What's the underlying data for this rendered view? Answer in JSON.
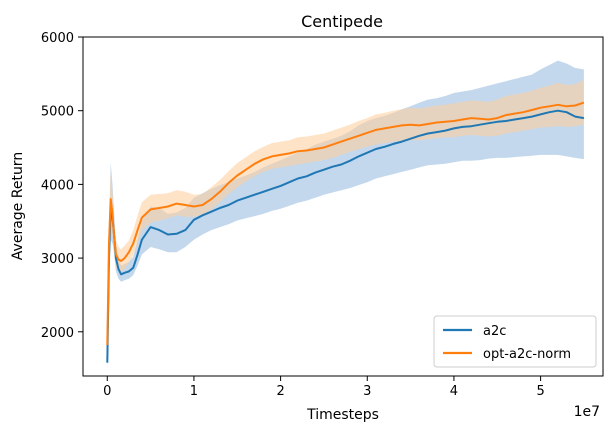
{
  "chart_data": {
    "type": "line",
    "title": "Centipede",
    "xlabel": "Timesteps",
    "ylabel": "Average Return",
    "x_offset_label": "1e7",
    "xlim": [
      -0.28,
      5.72
    ],
    "ylim": [
      1400,
      6000
    ],
    "x_ticks": [
      0,
      1,
      2,
      3,
      4,
      5
    ],
    "x_tick_labels": [
      "0",
      "1",
      "2",
      "3",
      "4",
      "5"
    ],
    "y_ticks": [
      2000,
      3000,
      4000,
      5000,
      6000
    ],
    "y_tick_labels": [
      "2000",
      "3000",
      "4000",
      "5000",
      "6000"
    ],
    "grid": false,
    "legend_position": "lower-right",
    "series": [
      {
        "name": "a2c",
        "color": "#1f77b4",
        "band_color": "#a9c8e4",
        "x": [
          0,
          0.02,
          0.04,
          0.06,
          0.08,
          0.1,
          0.13,
          0.16,
          0.2,
          0.25,
          0.3,
          0.35,
          0.4,
          0.5,
          0.6,
          0.7,
          0.8,
          0.9,
          1.0,
          1.1,
          1.2,
          1.3,
          1.4,
          1.5,
          1.6,
          1.7,
          1.8,
          1.9,
          2.0,
          2.1,
          2.2,
          2.3,
          2.4,
          2.5,
          2.6,
          2.7,
          2.8,
          2.9,
          3.0,
          3.1,
          3.2,
          3.3,
          3.4,
          3.5,
          3.6,
          3.7,
          3.8,
          3.9,
          4.0,
          4.1,
          4.2,
          4.3,
          4.4,
          4.5,
          4.6,
          4.7,
          4.8,
          4.9,
          5.0,
          5.1,
          5.2,
          5.3,
          5.4,
          5.5
        ],
        "y": [
          1580,
          3000,
          3650,
          3550,
          3300,
          3000,
          2850,
          2780,
          2800,
          2820,
          2870,
          3050,
          3250,
          3420,
          3380,
          3320,
          3330,
          3380,
          3520,
          3580,
          3630,
          3680,
          3720,
          3780,
          3820,
          3860,
          3900,
          3940,
          3980,
          4030,
          4080,
          4110,
          4160,
          4200,
          4240,
          4270,
          4320,
          4380,
          4430,
          4480,
          4510,
          4550,
          4580,
          4620,
          4660,
          4690,
          4710,
          4730,
          4760,
          4780,
          4790,
          4810,
          4830,
          4850,
          4860,
          4880,
          4900,
          4920,
          4950,
          4980,
          5000,
          4980,
          4920,
          4900
        ],
        "y_lower": [
          1450,
          2700,
          3250,
          3200,
          3050,
          2820,
          2720,
          2680,
          2700,
          2720,
          2770,
          2900,
          3050,
          3150,
          3120,
          3080,
          3080,
          3150,
          3250,
          3320,
          3380,
          3420,
          3460,
          3510,
          3540,
          3570,
          3600,
          3640,
          3670,
          3710,
          3750,
          3780,
          3820,
          3860,
          3890,
          3920,
          3950,
          3990,
          4030,
          4080,
          4110,
          4140,
          4170,
          4200,
          4230,
          4260,
          4270,
          4280,
          4300,
          4320,
          4320,
          4330,
          4350,
          4360,
          4360,
          4370,
          4380,
          4390,
          4400,
          4400,
          4400,
          4380,
          4360,
          4340
        ],
        "y_upper": [
          1700,
          3400,
          4300,
          4000,
          3600,
          3200,
          3000,
          2900,
          2920,
          2950,
          3020,
          3250,
          3500,
          3700,
          3680,
          3600,
          3620,
          3680,
          3820,
          3880,
          3940,
          3990,
          4030,
          4080,
          4120,
          4170,
          4230,
          4280,
          4330,
          4380,
          4430,
          4480,
          4540,
          4580,
          4620,
          4660,
          4720,
          4800,
          4860,
          4900,
          4930,
          4970,
          5020,
          5060,
          5110,
          5150,
          5170,
          5200,
          5240,
          5260,
          5280,
          5310,
          5340,
          5370,
          5400,
          5430,
          5460,
          5490,
          5560,
          5620,
          5680,
          5640,
          5580,
          5560
        ]
      },
      {
        "name": "opt-a2c-norm",
        "color": "#ff7f0e",
        "band_color": "#fdd0a2",
        "x": [
          0,
          0.02,
          0.04,
          0.06,
          0.08,
          0.1,
          0.13,
          0.16,
          0.2,
          0.25,
          0.3,
          0.35,
          0.4,
          0.5,
          0.6,
          0.7,
          0.8,
          0.9,
          1.0,
          1.1,
          1.2,
          1.3,
          1.4,
          1.5,
          1.6,
          1.7,
          1.8,
          1.9,
          2.0,
          2.1,
          2.2,
          2.3,
          2.4,
          2.5,
          2.6,
          2.7,
          2.8,
          2.9,
          3.0,
          3.1,
          3.2,
          3.3,
          3.4,
          3.5,
          3.6,
          3.7,
          3.8,
          3.9,
          4.0,
          4.1,
          4.2,
          4.3,
          4.4,
          4.5,
          4.6,
          4.7,
          4.8,
          4.9,
          5.0,
          5.1,
          5.2,
          5.3,
          5.4,
          5.5
        ],
        "y": [
          1820,
          3200,
          3800,
          3600,
          3280,
          3050,
          2980,
          2960,
          3000,
          3080,
          3200,
          3380,
          3550,
          3660,
          3680,
          3700,
          3740,
          3720,
          3700,
          3720,
          3800,
          3900,
          4020,
          4120,
          4200,
          4280,
          4340,
          4380,
          4400,
          4420,
          4450,
          4460,
          4480,
          4500,
          4540,
          4580,
          4620,
          4660,
          4700,
          4740,
          4760,
          4780,
          4800,
          4810,
          4800,
          4820,
          4840,
          4850,
          4860,
          4880,
          4900,
          4890,
          4880,
          4900,
          4940,
          4960,
          4980,
          5010,
          5040,
          5060,
          5080,
          5060,
          5070,
          5110
        ],
        "y_lower": [
          1700,
          2900,
          3500,
          3300,
          3080,
          2880,
          2820,
          2810,
          2850,
          2940,
          3040,
          3200,
          3380,
          3480,
          3510,
          3540,
          3580,
          3560,
          3560,
          3590,
          3660,
          3760,
          3870,
          3960,
          4040,
          4110,
          4170,
          4210,
          4230,
          4250,
          4270,
          4290,
          4310,
          4330,
          4360,
          4400,
          4440,
          4480,
          4510,
          4540,
          4560,
          4580,
          4590,
          4600,
          4600,
          4610,
          4630,
          4640,
          4640,
          4660,
          4670,
          4660,
          4650,
          4660,
          4690,
          4710,
          4730,
          4750,
          4770,
          4780,
          4790,
          4780,
          4790,
          4810
        ],
        "y_upper": [
          1950,
          3500,
          4150,
          3900,
          3500,
          3250,
          3150,
          3120,
          3170,
          3240,
          3380,
          3580,
          3760,
          3860,
          3870,
          3880,
          3920,
          3900,
          3860,
          3870,
          3960,
          4060,
          4180,
          4290,
          4370,
          4450,
          4510,
          4560,
          4580,
          4600,
          4640,
          4650,
          4670,
          4690,
          4730,
          4770,
          4810,
          4860,
          4900,
          4950,
          4970,
          5000,
          5020,
          5040,
          5030,
          5050,
          5070,
          5080,
          5100,
          5120,
          5140,
          5130,
          5120,
          5150,
          5200,
          5220,
          5240,
          5270,
          5310,
          5340,
          5380,
          5350,
          5360,
          5420
        ]
      }
    ]
  }
}
